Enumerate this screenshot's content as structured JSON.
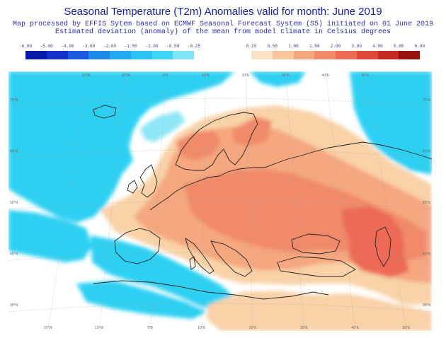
{
  "header": {
    "title": "Seasonal Temperature (T2m) Anomalies valid for month: June 2019",
    "subtitle_line1": "Map processed by EFFIS Sytem based on ECMWF Seasonal Forecast System (S5) initiated on 01 June 2019",
    "subtitle_line2": "Estimated deviation (anomaly) of the mean from model climate in Celsius degrees"
  },
  "legend_cold": {
    "labels": [
      "-6.00",
      "-5.00",
      "-4.00",
      "-3.00",
      "-2.00",
      "-1.50",
      "-1.00",
      "-0.50",
      "-0.25"
    ],
    "colors": [
      "#0a1aa8",
      "#1530c8",
      "#1a5ae0",
      "#1e8ae8",
      "#22a9ef",
      "#2bc3f4",
      "#3fd6f6",
      "#7fe6f8"
    ]
  },
  "legend_warm": {
    "labels": [
      "0.25",
      "0.50",
      "1.00",
      "1.50",
      "2.00",
      "3.00",
      "4.00",
      "5.00",
      "6.00"
    ],
    "colors": [
      "#fbe2c4",
      "#f8c79c",
      "#f5a77f",
      "#f28a6a",
      "#ee6c56",
      "#e04838",
      "#c42a22",
      "#9a1010"
    ]
  },
  "map": {
    "colors": {
      "ocean_neutral": "#ffffff",
      "cold": "#2fd0f2",
      "cold_light": "#8fe6f6",
      "warm_light": "#f9d2a8",
      "warm": "#f5a77f",
      "warm_mid": "#f08a6a",
      "warm_strong": "#ec6b56",
      "coast": "#222222",
      "grid": "#9a9a9a"
    },
    "lon_ticks_top": [
      "20°W",
      "10°W",
      "0°E",
      "10°E",
      "20°E",
      "30°E",
      "40°E",
      "50°E"
    ],
    "lon_ticks_bottom": [
      "20°W",
      "10°W",
      "0°E",
      "10°E",
      "20°E",
      "30°E",
      "40°E",
      "50°E"
    ],
    "lat_ticks_left": [
      "70°N",
      "60°N",
      "50°N",
      "40°N",
      "30°N"
    ],
    "lat_ticks_right": [
      "70°N",
      "60°N",
      "50°N",
      "40°N",
      "30°N"
    ]
  }
}
